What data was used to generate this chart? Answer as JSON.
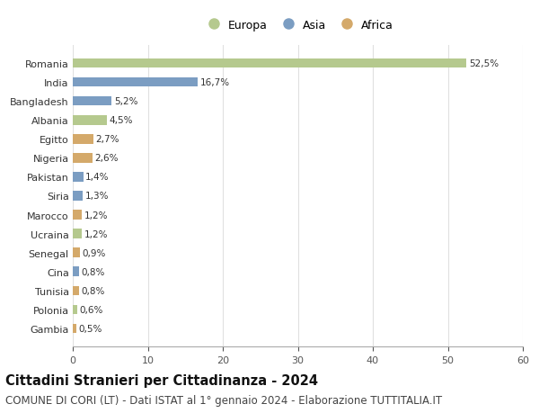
{
  "countries": [
    "Romania",
    "India",
    "Bangladesh",
    "Albania",
    "Egitto",
    "Nigeria",
    "Pakistan",
    "Siria",
    "Marocco",
    "Ucraina",
    "Senegal",
    "Cina",
    "Tunisia",
    "Polonia",
    "Gambia"
  ],
  "values": [
    52.5,
    16.7,
    5.2,
    4.5,
    2.7,
    2.6,
    1.4,
    1.3,
    1.2,
    1.2,
    0.9,
    0.8,
    0.8,
    0.6,
    0.5
  ],
  "labels": [
    "52,5%",
    "16,7%",
    "5,2%",
    "4,5%",
    "2,7%",
    "2,6%",
    "1,4%",
    "1,3%",
    "1,2%",
    "1,2%",
    "0,9%",
    "0,8%",
    "0,8%",
    "0,6%",
    "0,5%"
  ],
  "continents": [
    "Europa",
    "Asia",
    "Asia",
    "Europa",
    "Africa",
    "Africa",
    "Asia",
    "Asia",
    "Africa",
    "Europa",
    "Africa",
    "Asia",
    "Africa",
    "Europa",
    "Africa"
  ],
  "continent_colors": {
    "Europa": "#b5c98e",
    "Asia": "#7b9dc2",
    "Africa": "#d4a96a"
  },
  "legend_items": [
    "Europa",
    "Asia",
    "Africa"
  ],
  "legend_colors": [
    "#b5c98e",
    "#7b9dc2",
    "#d4a96a"
  ],
  "xlim": [
    0,
    60
  ],
  "xticks": [
    0,
    10,
    20,
    30,
    40,
    50,
    60
  ],
  "title": "Cittadini Stranieri per Cittadinanza - 2024",
  "subtitle": "COMUNE DI CORI (LT) - Dati ISTAT al 1° gennaio 2024 - Elaborazione TUTTITALIA.IT",
  "title_fontsize": 10.5,
  "subtitle_fontsize": 8.5,
  "bg_color": "#ffffff",
  "grid_color": "#e0e0e0",
  "bar_height": 0.5,
  "bar_alpha": 1.0
}
